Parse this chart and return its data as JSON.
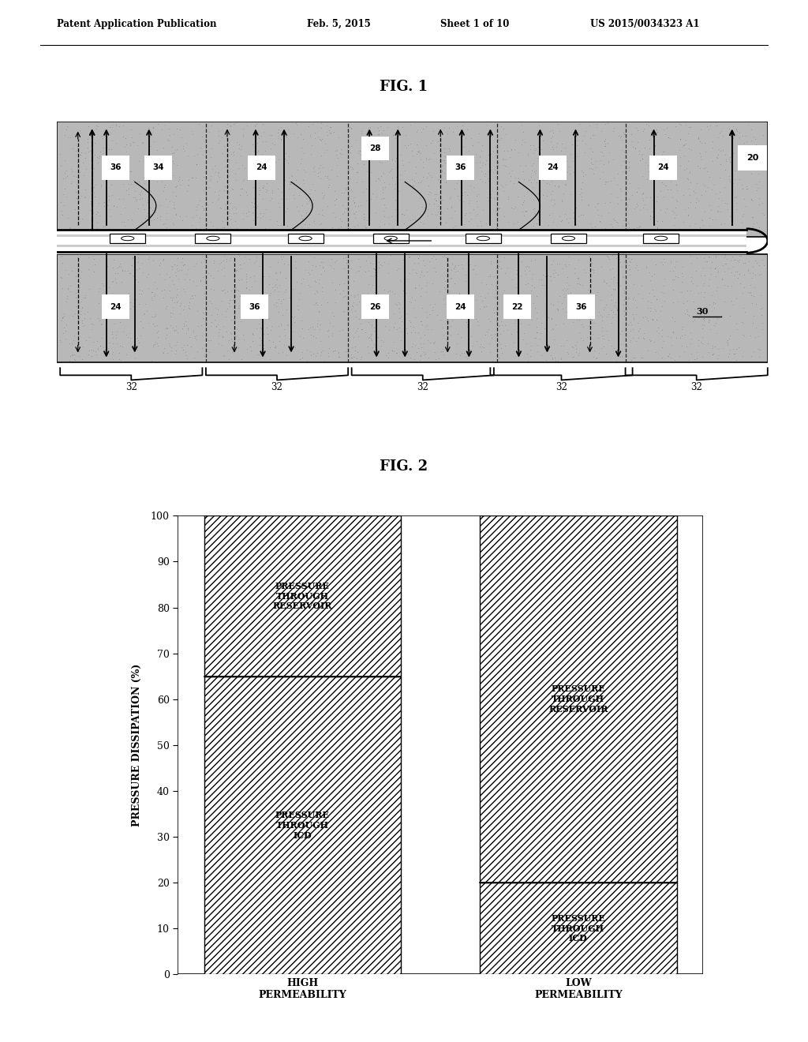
{
  "bg_color": "#ffffff",
  "header_text": "Patent Application Publication",
  "header_date": "Feb. 5, 2015",
  "header_sheet": "Sheet 1 of 10",
  "header_patent": "US 2015/0034323 A1",
  "fig1_title": "FIG. 1",
  "fig2_title": "FIG. 2",
  "fig2_ylabel": "PRESSURE DISSIPATION (%)",
  "fig2_xlabel_high": "HIGH\nPERMEABILITY",
  "fig2_xlabel_low": "LOW\nPERMEABILITY",
  "fig2_bar1_icd": 65,
  "fig2_bar1_reservoir": 35,
  "fig2_bar2_icd": 20,
  "fig2_bar2_reservoir": 80,
  "fig2_label_icd1": "PRESSURE\nTHROUGH\nICD",
  "fig2_label_res1": "PRESSURE\nTHROUGH\nRESERVOIR",
  "fig2_label_icd2": "PRESSURE\nTHROUGH\nICD",
  "fig2_label_res2": "PRESSURE\nTHROUGH\nRESERVOIR",
  "rock_color": "#b8b8b8",
  "pipe_color": "#d8d8d8",
  "label_20": "20",
  "label_22": "22",
  "label_24": "24",
  "label_26": "26",
  "label_28": "28",
  "label_30": "30",
  "label_32": "32",
  "label_34": "34",
  "label_36": "36"
}
